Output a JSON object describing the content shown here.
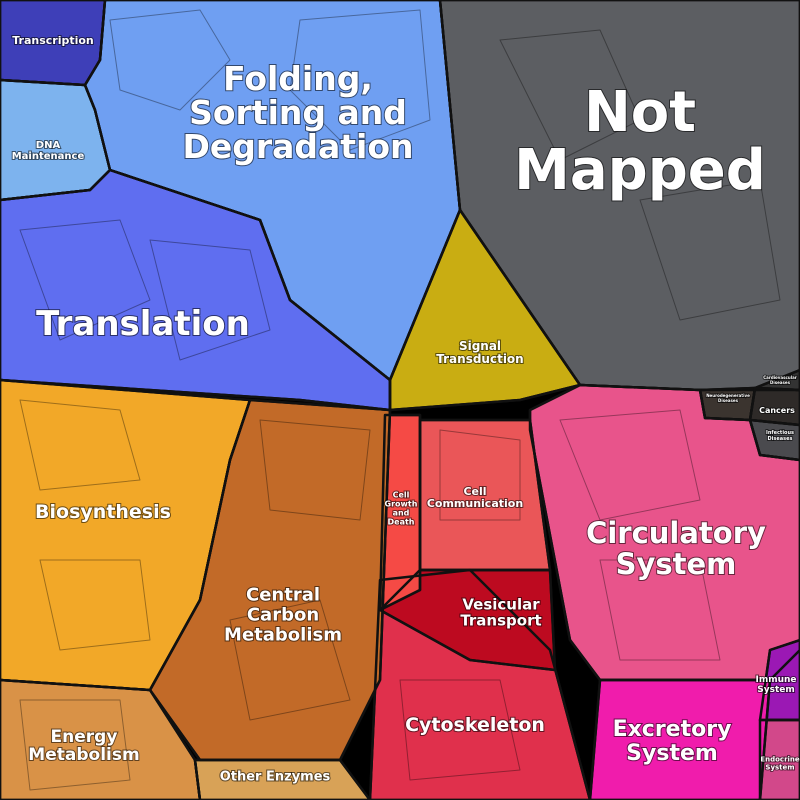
{
  "regions": [
    {
      "label": [
        "Transcription"
      ]
    },
    {
      "label": [
        "DNA",
        "Maintenance"
      ]
    },
    {
      "label": [
        "Folding,",
        "Sorting and",
        "Degradation"
      ]
    },
    {
      "label": [
        "Translation"
      ]
    },
    {
      "label": [
        "Not",
        "Mapped"
      ]
    },
    {
      "label": [
        "Signal",
        "Transduction"
      ]
    },
    {
      "label": [
        "Neurodegenerative",
        "Diseases"
      ]
    },
    {
      "label": [
        "Cancers"
      ]
    },
    {
      "label": [
        "Infectious",
        "Diseases"
      ]
    },
    {
      "label": [
        "Cardiovascular",
        "Diseases"
      ]
    },
    {
      "label": [
        "Circulatory",
        "System"
      ]
    },
    {
      "label": [
        "Immune",
        "System"
      ]
    },
    {
      "label": [
        "Endocrine",
        "System"
      ]
    },
    {
      "label": [
        "Excretory",
        "System"
      ]
    },
    {
      "label": [
        "Cytoskeleton"
      ]
    },
    {
      "label": [
        "Vesicular",
        "Transport"
      ]
    },
    {
      "label": [
        "Cell",
        "Communication"
      ]
    },
    {
      "label": [
        "Cell",
        "Growth",
        "and",
        "Death"
      ]
    },
    {
      "label": [
        "Biosynthesis"
      ]
    },
    {
      "label": [
        "Central",
        "Carbon",
        "Metabolism"
      ]
    },
    {
      "label": [
        "Energy",
        "Metabolism"
      ]
    },
    {
      "label": [
        "Other Enzymes"
      ]
    }
  ]
}
